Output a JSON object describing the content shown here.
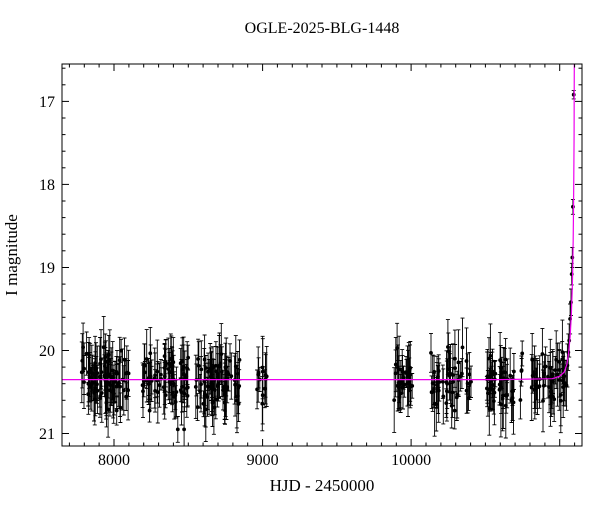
{
  "chart_data": {
    "type": "scatter",
    "title": "OGLE-2025-BLG-1448",
    "xlabel": "HJD - 2450000",
    "ylabel": "I magnitude",
    "xlim": [
      7650,
      11150
    ],
    "ylim": [
      21.15,
      16.55
    ],
    "y_axis_inverted": true,
    "x_major_ticks": [
      8000,
      9000,
      10000
    ],
    "x_minor_step": 100,
    "y_major_ticks": [
      17,
      18,
      19,
      20,
      21
    ],
    "y_minor_step": 0.2,
    "grid": false,
    "legend": false,
    "point_color": "#000000",
    "model_color": "#ee00ee",
    "baseline_mag": 20.35,
    "err_bar_range": [
      0.13,
      0.4
    ],
    "random_seed": 42,
    "seasons": [
      {
        "x_start": 7780,
        "x_end": 8100,
        "n_points": 85,
        "mean_mag": 20.35,
        "mag_scatter": 0.17
      },
      {
        "x_start": 8190,
        "x_end": 8500,
        "n_points": 72,
        "mean_mag": 20.35,
        "mag_scatter": 0.17
      },
      {
        "x_start": 8550,
        "x_end": 8850,
        "n_points": 72,
        "mean_mag": 20.35,
        "mag_scatter": 0.18
      },
      {
        "x_start": 8950,
        "x_end": 9030,
        "n_points": 12,
        "mean_mag": 20.35,
        "mag_scatter": 0.15
      },
      {
        "x_start": 9880,
        "x_end": 10010,
        "n_points": 30,
        "mean_mag": 20.35,
        "mag_scatter": 0.16
      },
      {
        "x_start": 10115,
        "x_end": 10410,
        "n_points": 48,
        "mean_mag": 20.35,
        "mag_scatter": 0.17
      },
      {
        "x_start": 10505,
        "x_end": 10750,
        "n_points": 48,
        "mean_mag": 20.35,
        "mag_scatter": 0.16
      },
      {
        "x_start": 10810,
        "x_end": 11040,
        "n_points": 46,
        "mean_mag": 20.35,
        "mag_scatter": 0.16
      }
    ],
    "event_points": [
      [
        11046,
        20.42,
        0.3
      ],
      [
        11052,
        20.18,
        0.26
      ],
      [
        11058,
        20.02,
        0.22
      ],
      [
        11064,
        19.88,
        0.2
      ],
      [
        11070,
        19.62,
        0.18
      ],
      [
        11076,
        19.42,
        0.16
      ],
      [
        11081,
        19.08,
        0.13
      ],
      [
        11085,
        18.88,
        0.12
      ],
      [
        11089,
        18.27,
        0.09
      ],
      [
        11094,
        16.92,
        0.05
      ]
    ],
    "model_curve": [
      [
        7650,
        20.35
      ],
      [
        10600,
        20.35
      ],
      [
        10950,
        20.34
      ],
      [
        11000,
        20.31
      ],
      [
        11030,
        20.26
      ],
      [
        11048,
        20.17
      ],
      [
        11060,
        20.03
      ],
      [
        11070,
        19.84
      ],
      [
        11078,
        19.58
      ],
      [
        11084,
        19.28
      ],
      [
        11088,
        18.98
      ],
      [
        11091,
        18.66
      ],
      [
        11093,
        18.32
      ],
      [
        11095,
        17.9
      ],
      [
        11096.5,
        17.4
      ],
      [
        11097.5,
        16.9
      ],
      [
        11098,
        16.55
      ],
      [
        11098.5,
        16.1
      ]
    ]
  }
}
